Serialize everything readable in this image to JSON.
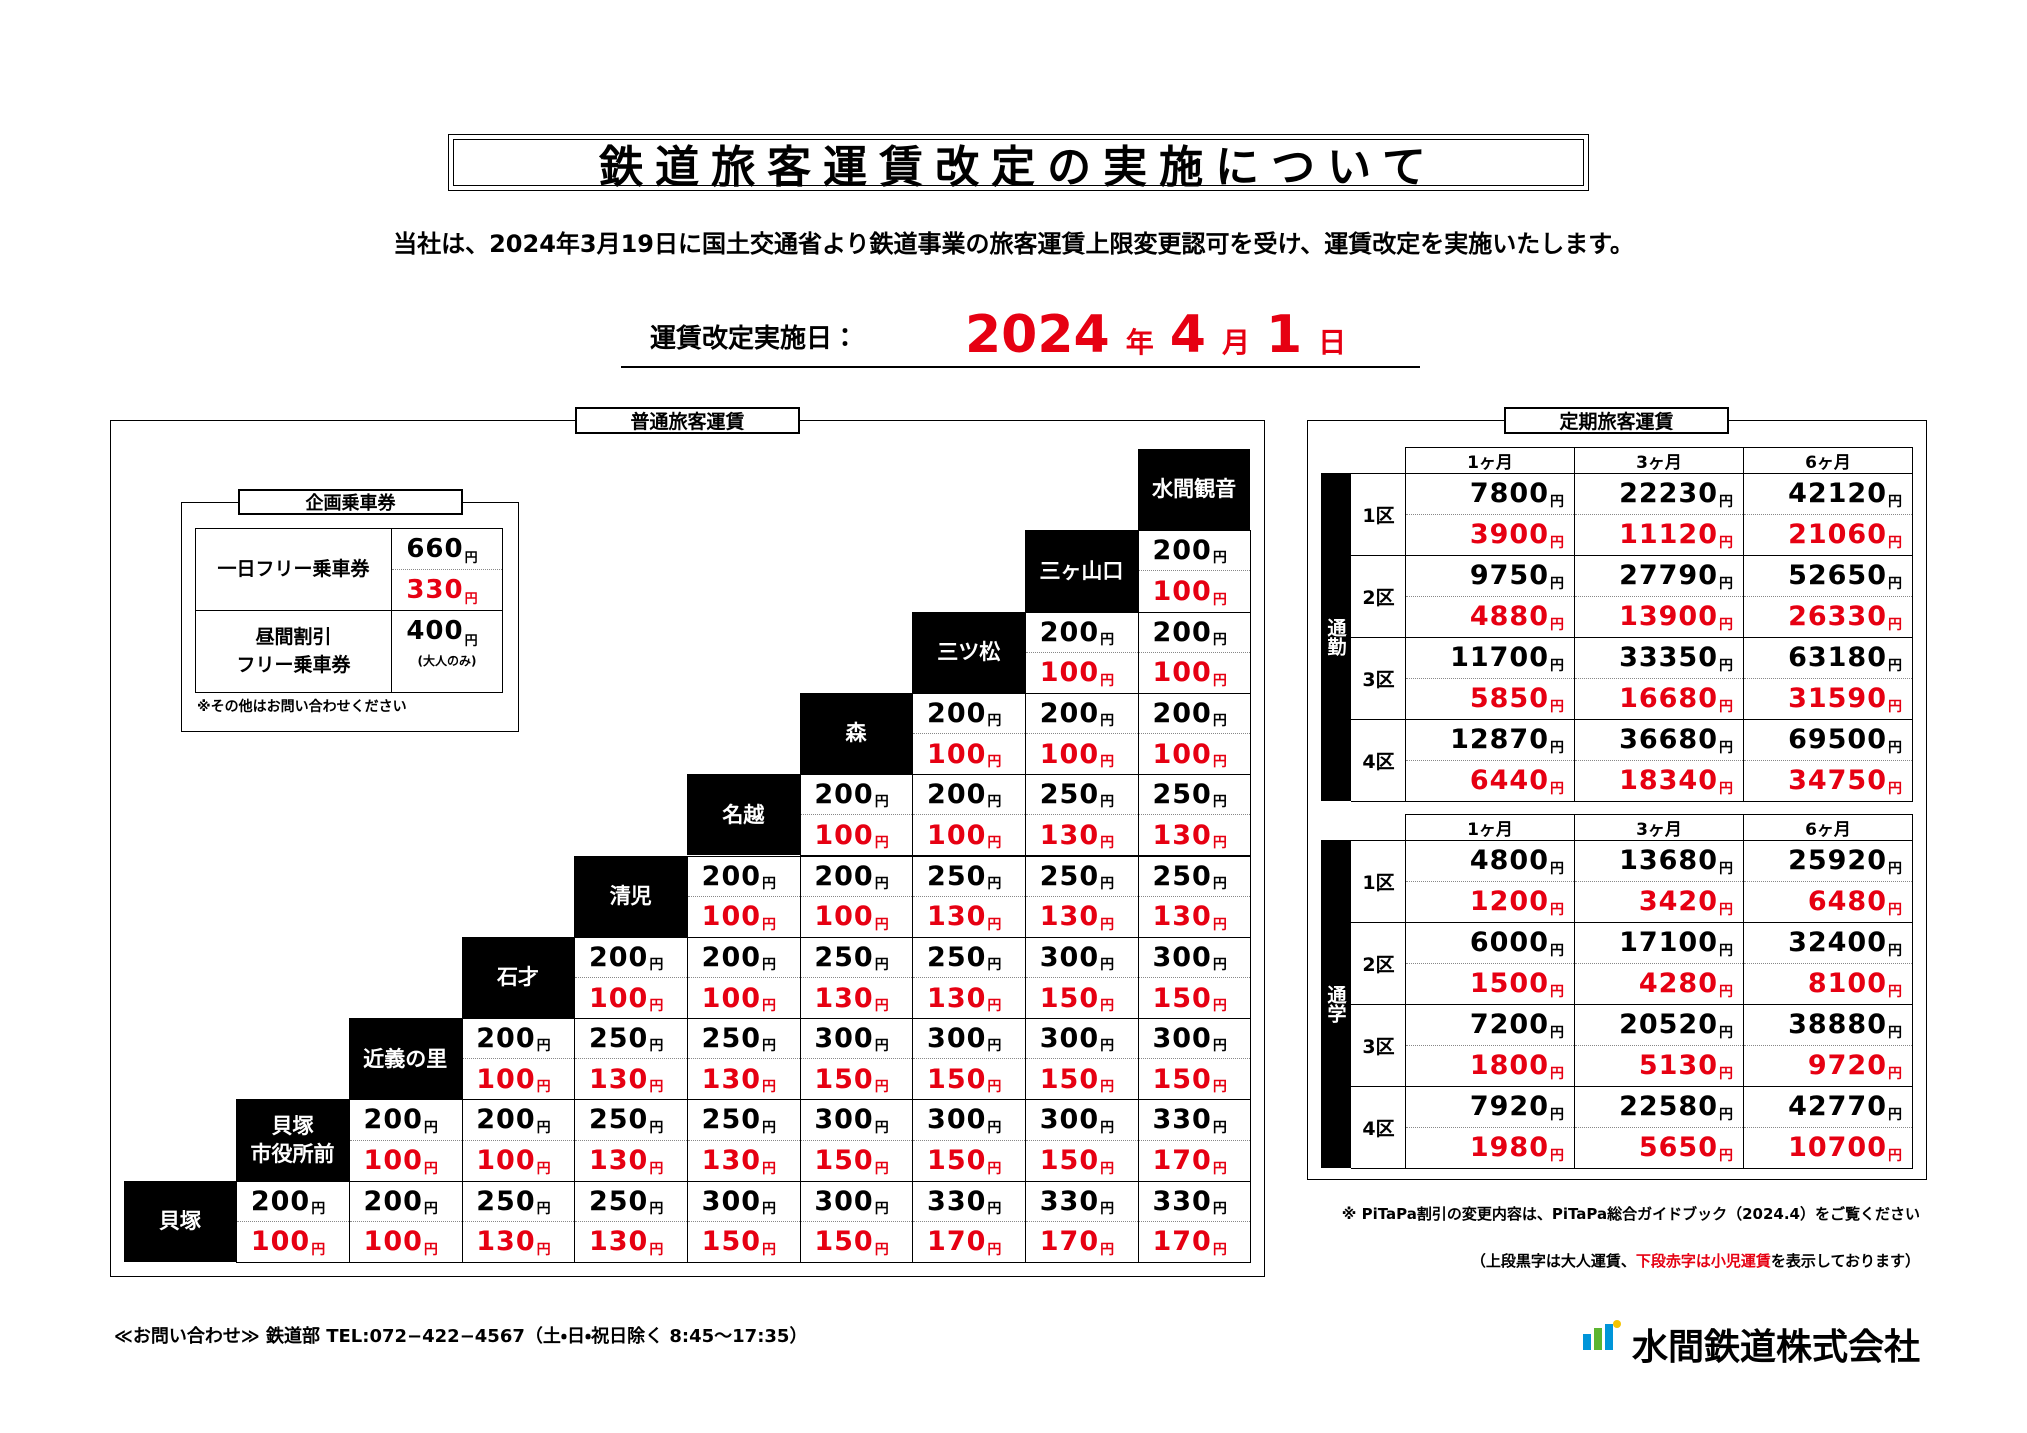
{
  "title": "鉄道旅客運賃改定の実施について",
  "intro": "当社は、2024年3月19日に国土交通省より鉄道事業の旅客運賃上限変更認可を受け、運賃改定を実施いたします。",
  "effective": {
    "label": "運賃改定実施日：",
    "year": "2024",
    "year_unit": "年",
    "month": "4",
    "month_unit": "月",
    "day": "1",
    "day_unit": "日"
  },
  "unit": "円",
  "regular": {
    "title": "普通旅客運賃",
    "stations": [
      "貝塚",
      "貝塚\n市役所前",
      "近義の里",
      "石才",
      "清児",
      "名越",
      "森",
      "三ツ松",
      "三ヶ山口",
      "水間観音"
    ],
    "rows": [
      {
        "adult": [
          200,
          200,
          250,
          250,
          300,
          300,
          330,
          330,
          330
        ],
        "child": [
          100,
          100,
          130,
          130,
          150,
          150,
          170,
          170,
          170
        ]
      },
      {
        "adult": [
          200,
          200,
          250,
          250,
          300,
          300,
          300,
          330
        ],
        "child": [
          100,
          100,
          130,
          130,
          150,
          150,
          150,
          170
        ]
      },
      {
        "adult": [
          200,
          250,
          250,
          300,
          300,
          300,
          300
        ],
        "child": [
          100,
          130,
          130,
          150,
          150,
          150,
          150
        ]
      },
      {
        "adult": [
          200,
          200,
          250,
          250,
          300,
          300
        ],
        "child": [
          100,
          100,
          130,
          130,
          150,
          150
        ]
      },
      {
        "adult": [
          200,
          200,
          250,
          250,
          250
        ],
        "child": [
          100,
          100,
          130,
          130,
          130
        ]
      },
      {
        "adult": [
          200,
          200,
          250,
          250
        ],
        "child": [
          100,
          100,
          130,
          130
        ]
      },
      {
        "adult": [
          200,
          200,
          200
        ],
        "child": [
          100,
          100,
          100
        ]
      },
      {
        "adult": [
          200,
          200
        ],
        "child": [
          100,
          100
        ]
      },
      {
        "adult": [
          200
        ],
        "child": [
          100
        ]
      },
      {
        "adult": [],
        "child": []
      }
    ]
  },
  "planned": {
    "title": "企画乗車券",
    "rows": [
      {
        "name": "一日フリー乗車券",
        "adult": 660,
        "child": 330
      },
      {
        "name": "昼間割引\nフリー乗車券",
        "adult": 400,
        "note": "(大人のみ)"
      }
    ],
    "footnote": "※その他はお問い合わせください"
  },
  "commuter": {
    "title": "定期旅客運賃",
    "headers": [
      "1ヶ月",
      "3ヶ月",
      "6ヶ月"
    ],
    "tables": [
      {
        "label": "通勤",
        "zones": [
          {
            "zone": "1区",
            "adult": [
              7800,
              22230,
              42120
            ],
            "child": [
              3900,
              11120,
              21060
            ]
          },
          {
            "zone": "2区",
            "adult": [
              9750,
              27790,
              52650
            ],
            "child": [
              4880,
              13900,
              26330
            ]
          },
          {
            "zone": "3区",
            "adult": [
              11700,
              33350,
              63180
            ],
            "child": [
              5850,
              16680,
              31590
            ]
          },
          {
            "zone": "4区",
            "adult": [
              12870,
              36680,
              69500
            ],
            "child": [
              6440,
              18340,
              34750
            ]
          }
        ]
      },
      {
        "label": "通学",
        "zones": [
          {
            "zone": "1区",
            "adult": [
              4800,
              13680,
              25920
            ],
            "child": [
              1200,
              3420,
              6480
            ]
          },
          {
            "zone": "2区",
            "adult": [
              6000,
              17100,
              32400
            ],
            "child": [
              1500,
              4280,
              8100
            ]
          },
          {
            "zone": "3区",
            "adult": [
              7200,
              20520,
              38880
            ],
            "child": [
              1800,
              5130,
              9720
            ]
          },
          {
            "zone": "4区",
            "adult": [
              7920,
              22580,
              42770
            ],
            "child": [
              1980,
              5650,
              10700
            ]
          }
        ]
      }
    ]
  },
  "notes": {
    "pitapa": "※ PiTaPa割引の変更内容は、PiTaPa総合ガイドブック（2024.4）をご覧ください",
    "legend_a": "（上段黒字は大人運賃、",
    "legend_b": "下段赤字は小児運賃",
    "legend_c": "を表示しております）"
  },
  "footer": {
    "contact": "≪お問い合わせ≫ 鉄道部 TEL:072−422−4567（土・日・祝日除く 8:45〜17:35）",
    "company": "水間鉄道株式会社"
  }
}
